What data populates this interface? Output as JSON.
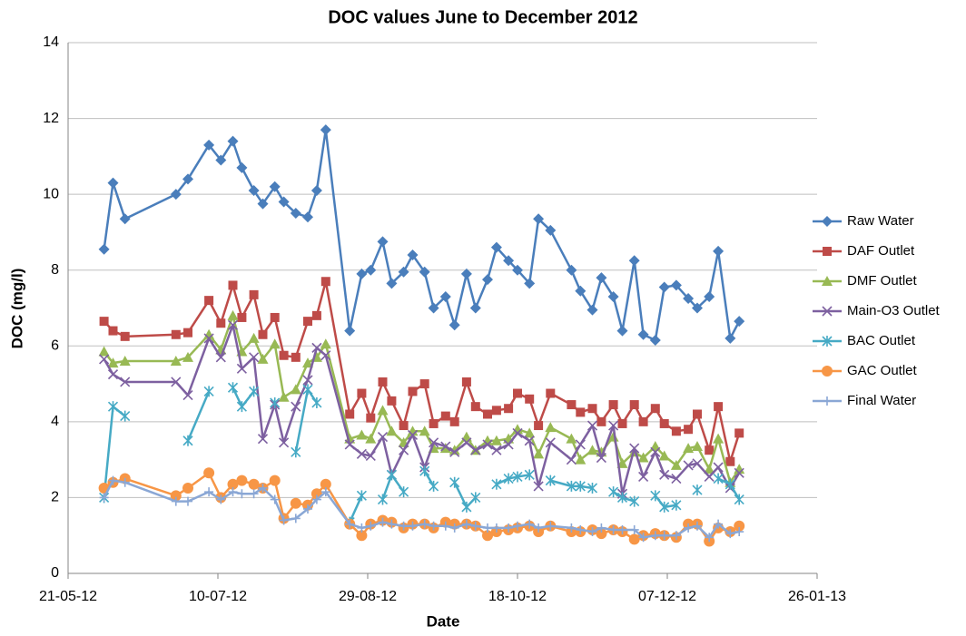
{
  "chart_data": {
    "type": "line",
    "title": "DOC values June to December 2012",
    "x_label": "Date",
    "y_label": "DOC (mg/l)",
    "x": [
      "2012-06-02",
      "2012-06-05",
      "2012-06-09",
      "2012-06-26",
      "2012-06-30",
      "2012-07-07",
      "2012-07-11",
      "2012-07-15",
      "2012-07-18",
      "2012-07-22",
      "2012-07-25",
      "2012-07-29",
      "2012-08-01",
      "2012-08-05",
      "2012-08-09",
      "2012-08-12",
      "2012-08-15",
      "2012-08-23",
      "2012-08-27",
      "2012-08-30",
      "2012-09-03",
      "2012-09-06",
      "2012-09-10",
      "2012-09-13",
      "2012-09-17",
      "2012-09-20",
      "2012-09-24",
      "2012-09-27",
      "2012-10-01",
      "2012-10-04",
      "2012-10-08",
      "2012-10-11",
      "2012-10-15",
      "2012-10-18",
      "2012-10-22",
      "2012-10-25",
      "2012-10-29",
      "2012-11-05",
      "2012-11-08",
      "2012-11-12",
      "2012-11-15",
      "2012-11-19",
      "2012-11-22",
      "2012-11-26",
      "2012-11-29",
      "2012-12-03",
      "2012-12-06",
      "2012-12-10",
      "2012-12-14",
      "2012-12-17",
      "2012-12-21",
      "2012-12-24",
      "2012-12-28",
      "2012-12-31"
    ],
    "series": [
      {
        "name": "Raw Water",
        "color": "#4a7ebb",
        "marker": "diamond",
        "values": [
          8.55,
          10.3,
          9.35,
          10.0,
          10.4,
          11.3,
          10.9,
          11.4,
          10.7,
          10.1,
          9.75,
          10.2,
          9.8,
          9.5,
          9.4,
          10.1,
          11.7,
          6.4,
          7.9,
          8.0,
          8.75,
          7.65,
          7.95,
          8.4,
          7.95,
          7.0,
          7.3,
          6.55,
          7.9,
          7.0,
          7.75,
          8.6,
          8.25,
          8.0,
          7.65,
          9.35,
          9.05,
          8.0,
          7.45,
          6.95,
          7.8,
          7.3,
          6.4,
          8.25,
          6.3,
          6.15,
          7.55,
          7.6,
          7.25,
          7.0,
          7.3,
          8.5,
          6.2,
          6.65
        ]
      },
      {
        "name": "DAF Outlet",
        "color": "#be4b48",
        "marker": "square",
        "values": [
          6.65,
          6.4,
          6.25,
          6.3,
          6.35,
          7.2,
          6.6,
          7.6,
          6.75,
          7.35,
          6.3,
          6.75,
          5.75,
          5.7,
          6.65,
          6.8,
          7.7,
          4.2,
          4.75,
          4.1,
          5.05,
          4.55,
          3.9,
          4.8,
          5.0,
          3.95,
          4.15,
          4.0,
          5.05,
          4.4,
          4.2,
          4.3,
          4.35,
          4.75,
          4.6,
          3.9,
          4.75,
          4.45,
          4.25,
          4.35,
          4.0,
          4.45,
          3.95,
          4.45,
          4.0,
          4.35,
          3.95,
          3.75,
          3.8,
          4.2,
          3.25,
          4.4,
          2.95,
          3.7
        ]
      },
      {
        "name": "DMF Outlet",
        "color": "#98b954",
        "marker": "triangle",
        "values": [
          5.85,
          5.55,
          5.6,
          5.6,
          5.7,
          6.3,
          5.9,
          6.8,
          5.85,
          6.2,
          5.65,
          6.05,
          4.65,
          4.85,
          5.55,
          5.7,
          6.05,
          3.55,
          3.65,
          3.55,
          4.3,
          3.75,
          3.45,
          3.75,
          3.75,
          3.3,
          3.3,
          3.25,
          3.6,
          3.25,
          3.5,
          3.5,
          3.55,
          3.8,
          3.7,
          3.15,
          3.85,
          3.55,
          3.0,
          3.25,
          3.2,
          3.6,
          2.9,
          3.2,
          3.05,
          3.35,
          3.1,
          2.85,
          3.3,
          3.35,
          2.75,
          3.55,
          2.4,
          2.75
        ]
      },
      {
        "name": "Main-O3 Outlet",
        "color": "#7d60a0",
        "marker": "x",
        "values": [
          5.65,
          5.25,
          5.05,
          5.05,
          4.7,
          6.2,
          5.7,
          6.55,
          5.4,
          5.7,
          3.55,
          4.45,
          3.45,
          4.4,
          5.1,
          5.95,
          5.75,
          3.4,
          3.15,
          3.1,
          3.6,
          2.6,
          3.25,
          3.65,
          2.8,
          3.45,
          3.35,
          3.2,
          3.45,
          3.25,
          3.4,
          3.25,
          3.4,
          3.7,
          3.5,
          2.3,
          3.45,
          3.0,
          3.4,
          3.9,
          3.05,
          3.9,
          2.1,
          3.3,
          2.55,
          3.2,
          2.6,
          2.5,
          2.85,
          2.9,
          2.55,
          2.8,
          2.25,
          2.65
        ]
      },
      {
        "name": "BAC Outlet",
        "color": "#46aac5",
        "marker": "star",
        "values": [
          2.0,
          4.4,
          4.15,
          null,
          3.5,
          4.8,
          null,
          4.9,
          4.4,
          4.8,
          null,
          4.5,
          null,
          3.2,
          4.85,
          4.5,
          null,
          1.35,
          2.05,
          null,
          1.95,
          2.6,
          2.15,
          null,
          2.7,
          2.3,
          null,
          2.4,
          1.75,
          2.0,
          null,
          2.35,
          2.5,
          2.55,
          2.6,
          null,
          2.45,
          2.3,
          2.3,
          2.25,
          null,
          2.15,
          2.0,
          1.9,
          null,
          2.05,
          1.75,
          1.8,
          null,
          2.2,
          null,
          2.5,
          2.35,
          1.95
        ]
      },
      {
        "name": "GAC Outlet",
        "color": "#f79646",
        "marker": "circle",
        "values": [
          2.25,
          2.4,
          2.5,
          2.05,
          2.25,
          2.65,
          2.0,
          2.35,
          2.45,
          2.35,
          2.25,
          2.45,
          1.45,
          1.85,
          1.8,
          2.1,
          2.35,
          1.3,
          1.0,
          1.3,
          1.4,
          1.35,
          1.2,
          1.3,
          1.3,
          1.2,
          1.35,
          1.3,
          1.3,
          1.25,
          1.0,
          1.1,
          1.15,
          1.2,
          1.25,
          1.1,
          1.25,
          1.1,
          1.1,
          1.15,
          1.05,
          1.15,
          1.1,
          0.9,
          1.0,
          1.05,
          1.0,
          0.95,
          1.3,
          1.3,
          0.85,
          1.2,
          1.1,
          1.25
        ]
      },
      {
        "name": "Final Water",
        "color": "#8aa7d5",
        "marker": "plus",
        "values": [
          2.0,
          2.45,
          2.4,
          1.9,
          1.9,
          2.15,
          1.95,
          2.15,
          2.1,
          2.1,
          2.25,
          1.95,
          1.4,
          1.45,
          1.7,
          1.95,
          2.15,
          1.3,
          1.2,
          1.25,
          1.35,
          1.3,
          1.25,
          1.25,
          1.3,
          1.25,
          1.25,
          1.2,
          1.3,
          1.25,
          1.2,
          1.2,
          1.2,
          1.25,
          1.3,
          1.2,
          1.25,
          1.2,
          1.15,
          1.1,
          1.2,
          1.15,
          1.15,
          1.15,
          0.95,
          1.0,
          1.0,
          1.0,
          1.2,
          1.25,
          0.95,
          1.3,
          1.05,
          1.1
        ]
      }
    ],
    "xlim": [
      "2012-05-21",
      "2013-01-26"
    ],
    "xticks": [
      {
        "value": "2012-05-21",
        "label": "21-05-12"
      },
      {
        "value": "2012-07-10",
        "label": "10-07-12"
      },
      {
        "value": "2012-08-29",
        "label": "29-08-12"
      },
      {
        "value": "2012-10-18",
        "label": "18-10-12"
      },
      {
        "value": "2012-12-07",
        "label": "07-12-12"
      },
      {
        "value": "2013-01-26",
        "label": "26-01-13"
      }
    ],
    "ylim": [
      0,
      14
    ],
    "yticks": [
      0,
      2,
      4,
      6,
      8,
      10,
      12,
      14
    ],
    "grid": true,
    "legend": "right"
  }
}
